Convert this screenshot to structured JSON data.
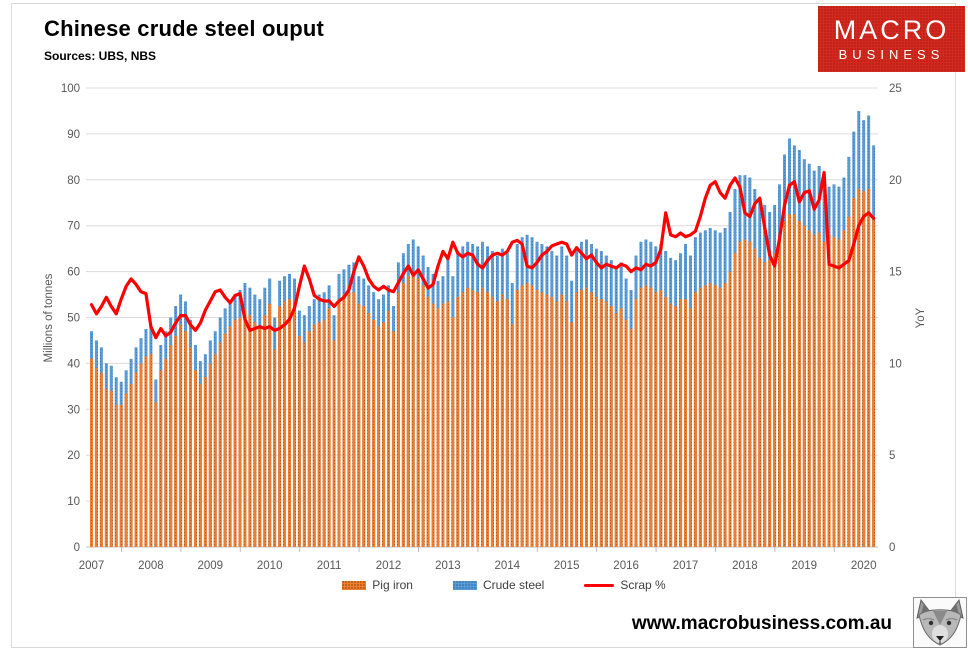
{
  "header": {
    "title": "Chinese crude steel ouput",
    "sources": "Sources: UBS, NBS"
  },
  "logo": {
    "line1": "MACRO",
    "line2": "BUSINESS",
    "bg_color": "#d32a20"
  },
  "footer": {
    "url": "www.macrobusiness.com.au"
  },
  "chart_data": {
    "type": "bar+line",
    "title": "Chinese crude steel ouput",
    "left_axis": {
      "label": "Millions of tonnes",
      "min": 0,
      "max": 100,
      "step": 10,
      "ticks": [
        "0",
        "10",
        "20",
        "30",
        "40",
        "50",
        "60",
        "70",
        "80",
        "90",
        "100"
      ]
    },
    "right_axis": {
      "label": "YoY",
      "min": 0,
      "max": 25,
      "step": 5,
      "ticks": [
        "0",
        "5",
        "10",
        "15",
        "20",
        "25"
      ]
    },
    "x_axis": {
      "start": "2007-01",
      "end": "2020-03",
      "frequency": "monthly",
      "ticks": [
        "2007",
        "2008",
        "2009",
        "2010",
        "2011",
        "2012",
        "2013",
        "2014",
        "2015",
        "2016",
        "2017",
        "2018",
        "2019",
        "2020"
      ]
    },
    "legend_position": "bottom",
    "grid": true,
    "series": [
      {
        "name": "Pig iron",
        "type": "bar",
        "axis": "left",
        "color": "#ED7D31",
        "dot_color": "#b65c14",
        "values": [
          41,
          39,
          38,
          34.5,
          34,
          31,
          31,
          33.5,
          35.5,
          38,
          40,
          41.5,
          42,
          31.5,
          38.5,
          41,
          44,
          46,
          48.5,
          47,
          43.5,
          38.5,
          35.5,
          37,
          40,
          42,
          44.5,
          46.5,
          48,
          49.5,
          50,
          51.5,
          50.5,
          49,
          48,
          50.5,
          53,
          43,
          52.5,
          53.5,
          54,
          53,
          46,
          44.5,
          47,
          48.5,
          49,
          49.5,
          52,
          45,
          54,
          55,
          55.5,
          55.5,
          53,
          52.5,
          51,
          49.5,
          48,
          49,
          51.5,
          47,
          55.5,
          57.5,
          59,
          60,
          58.5,
          57,
          54.5,
          53,
          52,
          53,
          53.5,
          50,
          54.5,
          55.5,
          56.5,
          56,
          55.5,
          56.5,
          55.5,
          54.5,
          53.5,
          55,
          54,
          48.5,
          56,
          57,
          57.5,
          57,
          56,
          55.5,
          55,
          54.5,
          53.5,
          55,
          53.5,
          49,
          55.5,
          56,
          56.5,
          55.5,
          54.5,
          54,
          53.5,
          52.5,
          51,
          52,
          49.5,
          47.5,
          54,
          56.5,
          57,
          56.5,
          55.5,
          56,
          54.5,
          53,
          52.5,
          54,
          54,
          52,
          55.5,
          56.5,
          57,
          57.5,
          57,
          56.5,
          57.5,
          60,
          64,
          66.5,
          67,
          66.5,
          65,
          63,
          62,
          62.5,
          64,
          67,
          71,
          72.5,
          72.5,
          71,
          70,
          69,
          68,
          68.5,
          66.5,
          68,
          67.5,
          67,
          69,
          72,
          76,
          78,
          77.5,
          78,
          71.5
        ]
      },
      {
        "name": "Crude steel",
        "type": "bar",
        "axis": "left",
        "color": "#5B9BD5",
        "dot_color": "#3d7cb8",
        "values": [
          47,
          45,
          43.5,
          40,
          39.5,
          37,
          36,
          38.5,
          41,
          43.5,
          45.5,
          47.5,
          48,
          36.5,
          44,
          47,
          50,
          52.5,
          55,
          53.5,
          49.5,
          44,
          40.5,
          42,
          45,
          47,
          50,
          52,
          53.5,
          55,
          56,
          57.5,
          56.5,
          55,
          54,
          56.5,
          58.5,
          50,
          58,
          59,
          59.5,
          58.5,
          51.5,
          50.5,
          52.5,
          54,
          55,
          55.5,
          57,
          50.5,
          59.5,
          60.5,
          61.5,
          62,
          59,
          58.5,
          57,
          55.5,
          54,
          55,
          57,
          52.5,
          62,
          64,
          66,
          67,
          65.5,
          63.5,
          61,
          59.5,
          58,
          59,
          63,
          59,
          64.5,
          65.5,
          66.5,
          66,
          65.5,
          66.5,
          65.5,
          64.5,
          63.5,
          65,
          64,
          57.5,
          66,
          67.5,
          68,
          67.5,
          66.5,
          66,
          65.5,
          64.5,
          63.5,
          65.5,
          63.5,
          58,
          65.5,
          66.5,
          67,
          66,
          65,
          64.5,
          63.5,
          62.5,
          61,
          62,
          58.5,
          56,
          63.5,
          66.5,
          67,
          66.5,
          65.5,
          66,
          64.5,
          63,
          62.5,
          64,
          66,
          63.5,
          67.5,
          68.5,
          69,
          69.5,
          69,
          68.5,
          69.5,
          73,
          78,
          81,
          81,
          80.5,
          78,
          76,
          74.5,
          73,
          74.5,
          79,
          85.5,
          89,
          87.5,
          86.5,
          84.5,
          83.5,
          82,
          83,
          79.5,
          78.5,
          79,
          78.5,
          80.5,
          85,
          90.5,
          95,
          93,
          94,
          87.5
        ]
      },
      {
        "name": "Scrap %",
        "type": "line",
        "axis": "right",
        "color": "#fe0000",
        "values": [
          13.2,
          12.7,
          13.1,
          13.6,
          13.1,
          12.7,
          13.5,
          14.2,
          14.6,
          14.3,
          13.9,
          13.8,
          12.0,
          11.4,
          11.9,
          11.5,
          11.7,
          12.2,
          12.6,
          12.6,
          12.1,
          11.8,
          12.2,
          12.9,
          13.4,
          13.9,
          14.0,
          13.6,
          13.3,
          13.7,
          13.8,
          12.4,
          11.8,
          11.9,
          12.0,
          11.9,
          12.0,
          11.8,
          11.9,
          12.1,
          12.4,
          13.0,
          14.2,
          15.3,
          14.6,
          13.7,
          13.5,
          13.4,
          13.4,
          13.1,
          13.4,
          13.6,
          14.0,
          15.0,
          15.8,
          15.3,
          14.6,
          14.2,
          14.0,
          14.2,
          14.0,
          13.9,
          14.4,
          14.9,
          15.3,
          14.8,
          15.1,
          14.6,
          14.1,
          14.3,
          15.3,
          16.1,
          15.7,
          16.6,
          16.0,
          15.8,
          16.0,
          15.9,
          15.4,
          15.2,
          15.6,
          15.9,
          16.0,
          15.9,
          16.1,
          16.6,
          16.7,
          16.5,
          15.3,
          15.2,
          15.5,
          15.9,
          16.1,
          16.4,
          16.5,
          16.6,
          16.5,
          15.9,
          16.3,
          16.0,
          15.7,
          15.9,
          15.5,
          15.2,
          15.4,
          15.3,
          15.2,
          15.4,
          15.3,
          15.0,
          15.2,
          15.1,
          15.4,
          15.3,
          15.5,
          16.2,
          18.2,
          17.0,
          16.9,
          17.1,
          16.9,
          17.0,
          17.2,
          18.0,
          19.0,
          19.7,
          19.9,
          19.3,
          19.0,
          19.7,
          20.1,
          19.6,
          18.2,
          18.0,
          18.7,
          19.0,
          17.4,
          15.9,
          15.3,
          16.8,
          18.6,
          19.7,
          19.9,
          18.8,
          19.3,
          19.4,
          18.4,
          18.9,
          20.4,
          15.4,
          15.3,
          15.2,
          15.4,
          15.6,
          16.5,
          17.5,
          18.0,
          18.2,
          17.9
        ]
      }
    ]
  }
}
